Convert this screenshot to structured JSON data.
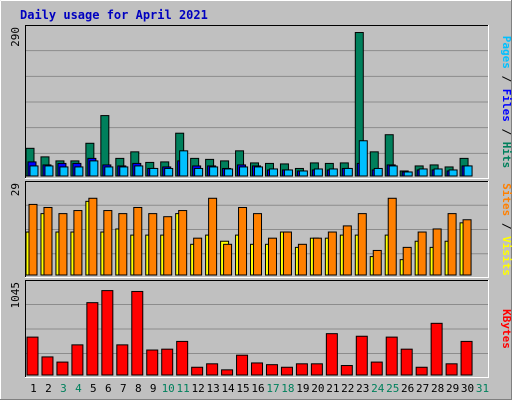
{
  "title": "Daily usage for April 2021",
  "colors": {
    "background": "#c0c0c0",
    "plot_bg": "#c0c0c0",
    "grid": "#8c8c8c",
    "title": "#0000c0",
    "hits": "#00805c",
    "files": "#0000ff",
    "pages": "#00c0ff",
    "visits": "#ffff00",
    "sites": "#ff8000",
    "kbytes": "#ff0000",
    "weekday_label": "#000000",
    "weekend_label": "#00805c"
  },
  "chart_data": [
    {
      "type": "bar",
      "panel": "top",
      "ymax_label": "290",
      "ylim": [
        0,
        290
      ],
      "right_labels": [
        {
          "text": "Pages",
          "color": "#00c0ff"
        },
        {
          "text": " / ",
          "color": "#000000"
        },
        {
          "text": "Files",
          "color": "#0000ff"
        },
        {
          "text": " / ",
          "color": "#000000"
        },
        {
          "text": "Hits",
          "color": "#00805c"
        }
      ],
      "categories": [
        "1",
        "2",
        "3",
        "4",
        "5",
        "6",
        "7",
        "8",
        "9",
        "10",
        "11",
        "12",
        "13",
        "14",
        "15",
        "16",
        "17",
        "18",
        "19",
        "20",
        "21",
        "22",
        "23",
        "24",
        "25",
        "26",
        "27",
        "28",
        "29",
        "30",
        "31"
      ],
      "series": [
        {
          "name": "Hits",
          "values": [
            55,
            38,
            30,
            30,
            65,
            120,
            35,
            48,
            27,
            28,
            85,
            35,
            33,
            30,
            50,
            26,
            25,
            24,
            15,
            26,
            25,
            26,
            285,
            48,
            82,
            10,
            20,
            22,
            18,
            35,
            0
          ]
        },
        {
          "name": "Files",
          "values": [
            28,
            22,
            25,
            25,
            35,
            22,
            20,
            25,
            15,
            18,
            30,
            20,
            20,
            15,
            22,
            20,
            12,
            12,
            10,
            12,
            12,
            15,
            25,
            12,
            22,
            8,
            12,
            12,
            10,
            20,
            0
          ]
        },
        {
          "name": "Pages",
          "values": [
            20,
            20,
            18,
            18,
            30,
            18,
            18,
            20,
            15,
            15,
            50,
            15,
            18,
            14,
            18,
            18,
            14,
            12,
            10,
            14,
            14,
            15,
            70,
            15,
            20,
            8,
            14,
            14,
            12,
            20,
            0
          ]
        }
      ]
    },
    {
      "type": "bar",
      "panel": "middle",
      "ymax_label": "29",
      "ylim": [
        0,
        29
      ],
      "right_labels": [
        {
          "text": "Sites",
          "color": "#ff8000"
        },
        {
          "text": " / ",
          "color": "#000000"
        },
        {
          "text": "Visits",
          "color": "#ffff00"
        }
      ],
      "categories": [
        "1",
        "2",
        "3",
        "4",
        "5",
        "6",
        "7",
        "8",
        "9",
        "10",
        "11",
        "12",
        "13",
        "14",
        "15",
        "16",
        "17",
        "18",
        "19",
        "20",
        "21",
        "22",
        "23",
        "24",
        "25",
        "26",
        "27",
        "28",
        "29",
        "30",
        "31"
      ],
      "series": [
        {
          "name": "Sites",
          "values": [
            23,
            22,
            20,
            21,
            25,
            21,
            20,
            22,
            20,
            19,
            21,
            12,
            25,
            10,
            22,
            20,
            12,
            14,
            10,
            12,
            14,
            16,
            20,
            8,
            25,
            9,
            14,
            15,
            20,
            18,
            0
          ]
        },
        {
          "name": "Visits",
          "values": [
            14,
            20,
            14,
            14,
            24,
            14,
            15,
            13,
            13,
            13,
            20,
            10,
            13,
            11,
            13,
            10,
            10,
            14,
            9,
            12,
            12,
            13,
            13,
            6,
            13,
            5,
            11,
            9,
            11,
            17,
            0
          ]
        }
      ]
    },
    {
      "type": "bar",
      "panel": "bottom",
      "ymax_label": "1045",
      "ylim": [
        0,
        1045
      ],
      "right_labels": [
        {
          "text": "KBytes",
          "color": "#ff0000"
        }
      ],
      "categories": [
        "1",
        "2",
        "3",
        "4",
        "5",
        "6",
        "7",
        "8",
        "9",
        "10",
        "11",
        "12",
        "13",
        "14",
        "15",
        "16",
        "17",
        "18",
        "19",
        "20",
        "21",
        "22",
        "23",
        "24",
        "25",
        "26",
        "27",
        "28",
        "29",
        "30",
        "31"
      ],
      "series": [
        {
          "name": "KBytes",
          "values": [
            440,
            210,
            150,
            350,
            840,
            980,
            350,
            970,
            290,
            300,
            390,
            90,
            130,
            60,
            230,
            140,
            120,
            90,
            130,
            130,
            480,
            110,
            450,
            150,
            440,
            300,
            90,
            600,
            130,
            390,
            0
          ]
        }
      ]
    }
  ],
  "x_labels": [
    {
      "text": "1",
      "weekend": false
    },
    {
      "text": "2",
      "weekend": false
    },
    {
      "text": "3",
      "weekend": true
    },
    {
      "text": "4",
      "weekend": true
    },
    {
      "text": "5",
      "weekend": false
    },
    {
      "text": "6",
      "weekend": false
    },
    {
      "text": "7",
      "weekend": false
    },
    {
      "text": "8",
      "weekend": false
    },
    {
      "text": "9",
      "weekend": false
    },
    {
      "text": "10",
      "weekend": true
    },
    {
      "text": "11",
      "weekend": true
    },
    {
      "text": "12",
      "weekend": false
    },
    {
      "text": "13",
      "weekend": false
    },
    {
      "text": "14",
      "weekend": false
    },
    {
      "text": "15",
      "weekend": false
    },
    {
      "text": "16",
      "weekend": false
    },
    {
      "text": "17",
      "weekend": true
    },
    {
      "text": "18",
      "weekend": true
    },
    {
      "text": "19",
      "weekend": false
    },
    {
      "text": "20",
      "weekend": false
    },
    {
      "text": "21",
      "weekend": false
    },
    {
      "text": "22",
      "weekend": false
    },
    {
      "text": "23",
      "weekend": false
    },
    {
      "text": "24",
      "weekend": true
    },
    {
      "text": "25",
      "weekend": true
    },
    {
      "text": "26",
      "weekend": false
    },
    {
      "text": "27",
      "weekend": false
    },
    {
      "text": "28",
      "weekend": false
    },
    {
      "text": "29",
      "weekend": false
    },
    {
      "text": "30",
      "weekend": false
    },
    {
      "text": "31",
      "weekend": true
    }
  ]
}
